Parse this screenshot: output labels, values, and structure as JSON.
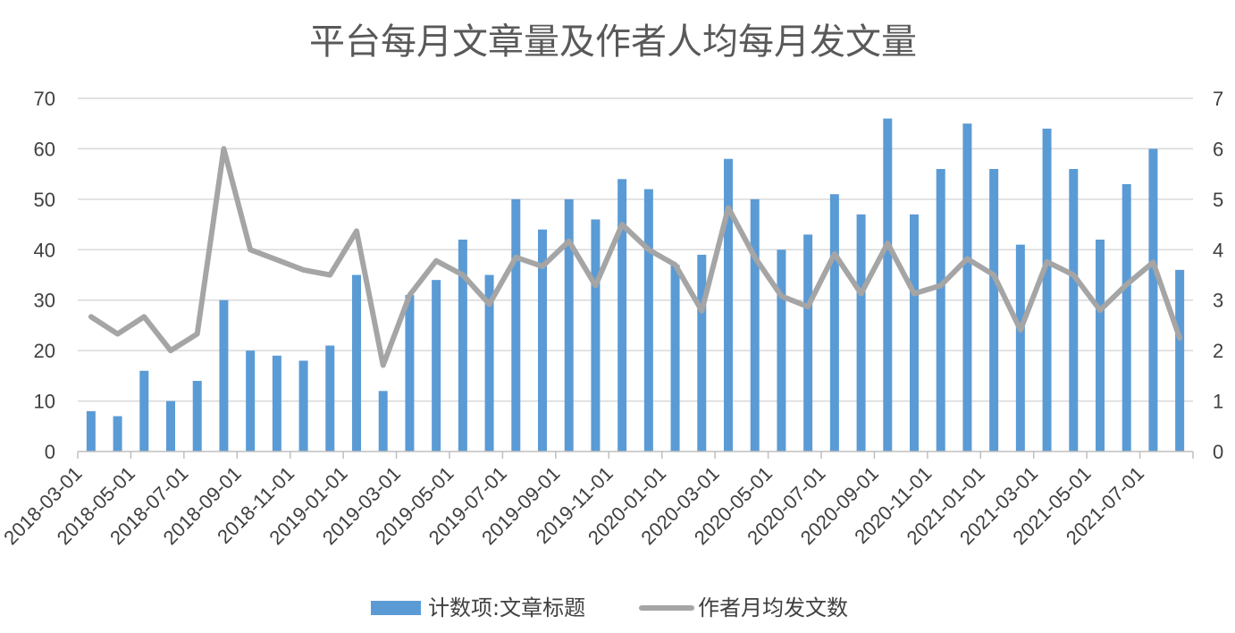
{
  "chart_data": {
    "type": "bar+line",
    "title": "平台每月文章量及作者人均每月发文量",
    "x": [
      "2018-03-01",
      "2018-04-01",
      "2018-05-01",
      "2018-06-01",
      "2018-07-01",
      "2018-08-01",
      "2018-09-01",
      "2018-10-01",
      "2018-11-01",
      "2018-12-01",
      "2019-01-01",
      "2019-02-01",
      "2019-03-01",
      "2019-04-01",
      "2019-05-01",
      "2019-06-01",
      "2019-07-01",
      "2019-08-01",
      "2019-09-01",
      "2019-10-01",
      "2019-11-01",
      "2019-12-01",
      "2020-01-01",
      "2020-02-01",
      "2020-03-01",
      "2020-04-01",
      "2020-05-01",
      "2020-06-01",
      "2020-07-01",
      "2020-08-01",
      "2020-09-01",
      "2020-10-01",
      "2020-11-01",
      "2020-12-01",
      "2021-01-01",
      "2021-02-01",
      "2021-03-01",
      "2021-04-01",
      "2021-05-01",
      "2021-06-01",
      "2021-07-01",
      "2021-08-01"
    ],
    "x_tick_labels": [
      "2018-03-01",
      "2018-05-01",
      "2018-07-01",
      "2018-09-01",
      "2018-11-01",
      "2019-01-01",
      "2019-03-01",
      "2019-05-01",
      "2019-07-01",
      "2019-09-01",
      "2019-11-01",
      "2020-01-01",
      "2020-03-01",
      "2020-05-01",
      "2020-07-01",
      "2020-09-01",
      "2020-11-01",
      "2021-01-01",
      "2021-03-01",
      "2021-05-01",
      "2021-07-01"
    ],
    "y_left": {
      "lim": [
        0,
        70
      ],
      "ticks": [
        "0",
        "10",
        "20",
        "30",
        "40",
        "50",
        "60",
        "70"
      ]
    },
    "y_right": {
      "lim": [
        0,
        7
      ],
      "ticks": [
        "0",
        "1",
        "2",
        "3",
        "4",
        "5",
        "6",
        "7"
      ]
    },
    "grid": true,
    "legend": "bottom",
    "series": [
      {
        "name": "计数项:文章标题",
        "type": "bar",
        "axis": "left",
        "color": "#5B9BD5",
        "values": [
          8,
          7,
          16,
          10,
          14,
          30,
          20,
          19,
          18,
          21,
          35,
          12,
          31,
          34,
          42,
          35,
          50,
          44,
          50,
          46,
          54,
          52,
          37,
          39,
          58,
          50,
          40,
          43,
          51,
          47,
          66,
          47,
          56,
          65,
          56,
          41,
          64,
          56,
          42,
          53,
          60,
          36
        ]
      },
      {
        "name": "作者月均发文数",
        "type": "line",
        "axis": "right",
        "color": "#A5A5A5",
        "values": [
          2.67,
          2.33,
          2.67,
          2.0,
          2.33,
          6.0,
          4.0,
          3.8,
          3.6,
          3.5,
          4.37,
          1.71,
          3.1,
          3.78,
          3.5,
          2.92,
          3.85,
          3.67,
          4.17,
          3.29,
          4.5,
          4.0,
          3.7,
          2.79,
          4.83,
          3.85,
          3.08,
          2.87,
          3.92,
          3.13,
          4.13,
          3.13,
          3.29,
          3.82,
          3.5,
          2.41,
          3.76,
          3.5,
          2.8,
          3.31,
          3.75,
          2.25
        ]
      }
    ]
  }
}
